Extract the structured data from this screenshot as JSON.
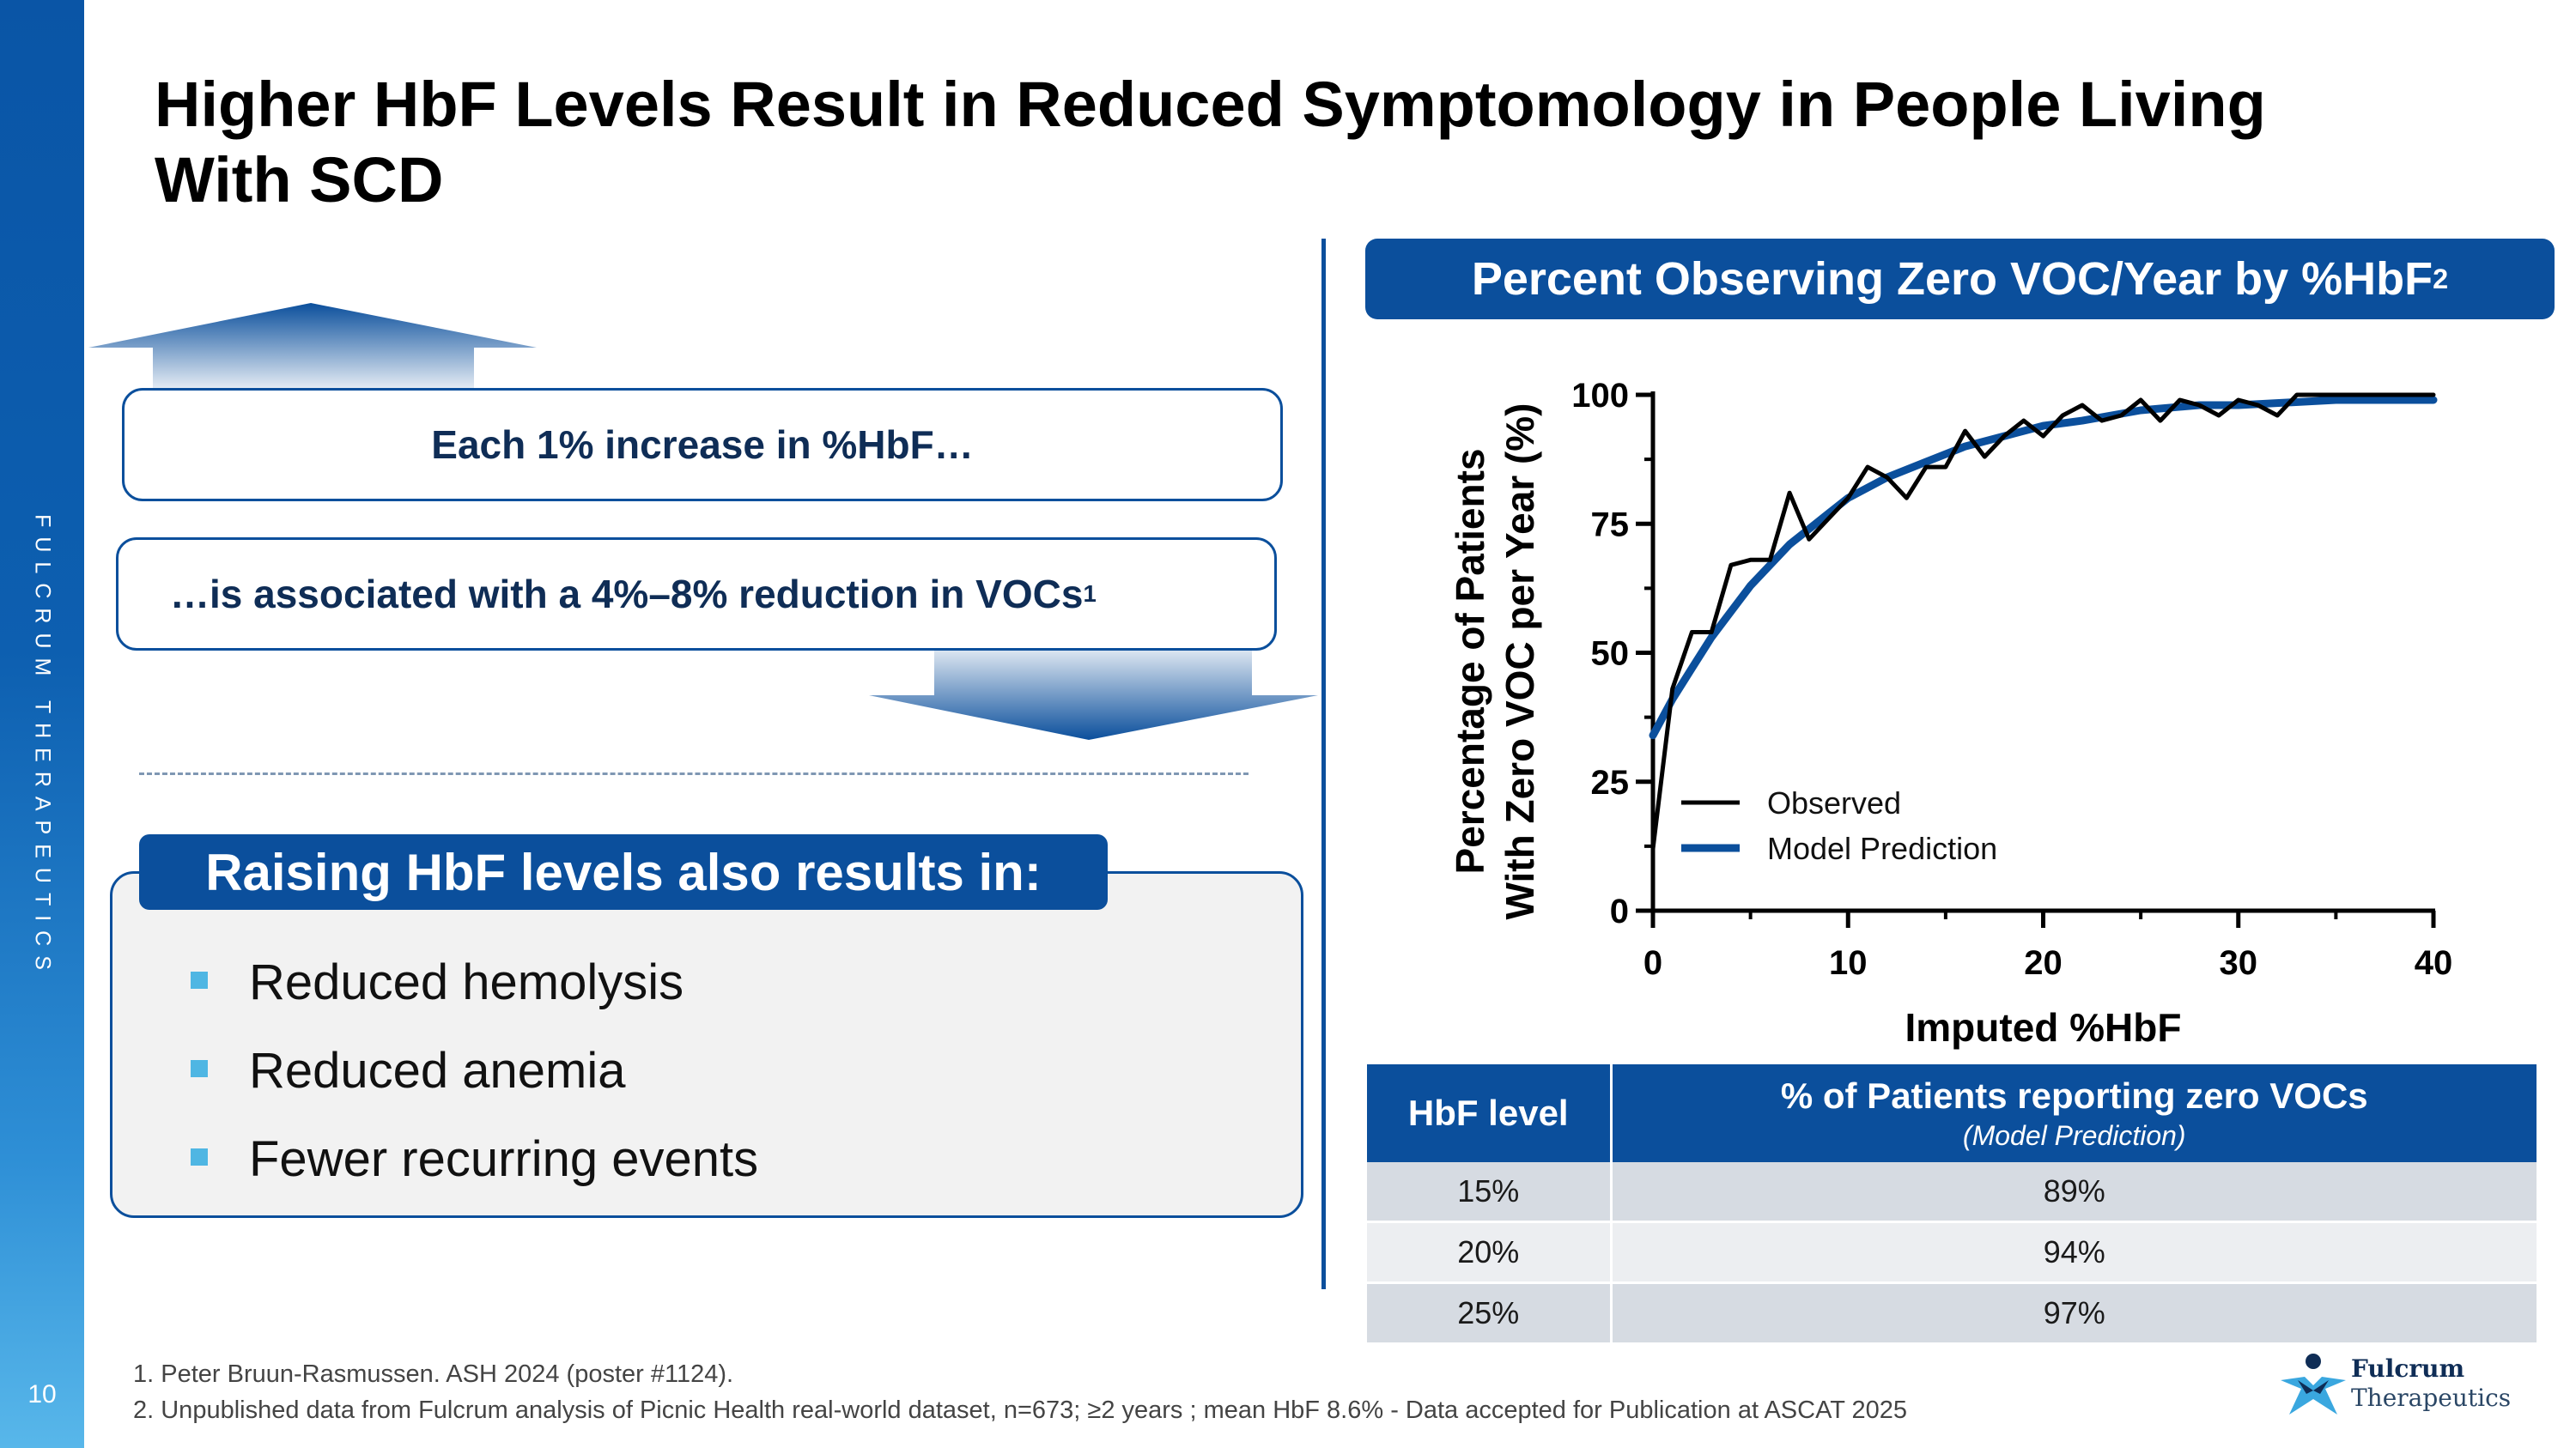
{
  "sidebar": {
    "brand": "FULCRUM THERAPEUTICS",
    "slide_number": "10"
  },
  "title": "Higher HbF Levels Result in Reduced Symptomology in People Living With SCD",
  "left": {
    "box1_text": "Each 1% increase in %HbF…",
    "box2_text": "…is associated with a 4%–8% reduction in VOCs",
    "box2_sup": "1",
    "raising_title": "Raising HbF levels also results in:",
    "bullets": [
      "Reduced hemolysis",
      "Reduced anemia",
      "Fewer recurring events"
    ],
    "colors": {
      "accent": "#0b4f9c",
      "bullet": "#4fb6e3"
    }
  },
  "right": {
    "panel_title": "Percent Observing Zero VOC/Year by %HbF",
    "panel_title_sup": "2"
  },
  "chart_data": {
    "type": "line",
    "title": "Percent Observing Zero VOC/Year by %HbF",
    "xlabel": "Imputed %HbF",
    "ylabel_line1": "Percentage of Patients",
    "ylabel_line2": "With Zero VOC per Year (%)",
    "xlim": [
      0,
      40
    ],
    "ylim": [
      0,
      100
    ],
    "x_ticks": [
      0,
      10,
      20,
      30,
      40
    ],
    "y_ticks": [
      0,
      25,
      50,
      75,
      100
    ],
    "legend_position": "lower-right",
    "series": [
      {
        "name": "Observed",
        "color": "#000000",
        "x": [
          0,
          1,
          2,
          3,
          4,
          5,
          6,
          7,
          8,
          9,
          10,
          11,
          12,
          13,
          14,
          15,
          16,
          17,
          18,
          19,
          20,
          21,
          22,
          23,
          24,
          25,
          26,
          27,
          28,
          29,
          30,
          31,
          32,
          33,
          35,
          37,
          40
        ],
        "y": [
          12,
          43,
          54,
          54,
          67,
          68,
          68,
          81,
          72,
          76,
          80,
          86,
          84,
          80,
          86,
          86,
          93,
          88,
          92,
          95,
          92,
          96,
          98,
          95,
          96,
          99,
          95,
          99,
          98,
          96,
          99,
          98,
          96,
          100,
          100,
          100,
          100
        ]
      },
      {
        "name": "Model Prediction",
        "color": "#0b4f9c",
        "x": [
          0,
          1,
          2,
          3,
          4,
          5,
          6,
          7,
          8,
          9,
          10,
          12,
          14,
          16,
          18,
          20,
          22,
          25,
          28,
          30,
          35,
          40
        ],
        "y": [
          34,
          41,
          47,
          53,
          58,
          63,
          67,
          71,
          74,
          77,
          80,
          84,
          87,
          90,
          92,
          94,
          95,
          97,
          98,
          98,
          99,
          99
        ]
      }
    ]
  },
  "table": {
    "headers": [
      "HbF level",
      "% of Patients reporting zero VOCs"
    ],
    "header_sub": "(Model Prediction)",
    "rows": [
      [
        "15%",
        "89%"
      ],
      [
        "20%",
        "94%"
      ],
      [
        "25%",
        "97%"
      ]
    ]
  },
  "footnotes": [
    "1. Peter Bruun-Rasmussen. ASH 2024 (poster #1124).",
    "2. Unpublished data from Fulcrum analysis of Picnic Health real-world dataset, n=673; ≥2 years ; mean HbF 8.6% - Data accepted for Publication at ASCAT 2025"
  ],
  "logo": {
    "line1": "Fulcrum",
    "line2": "Therapeutics",
    "color": "#0f2d56",
    "accent": "#3aa7df"
  }
}
